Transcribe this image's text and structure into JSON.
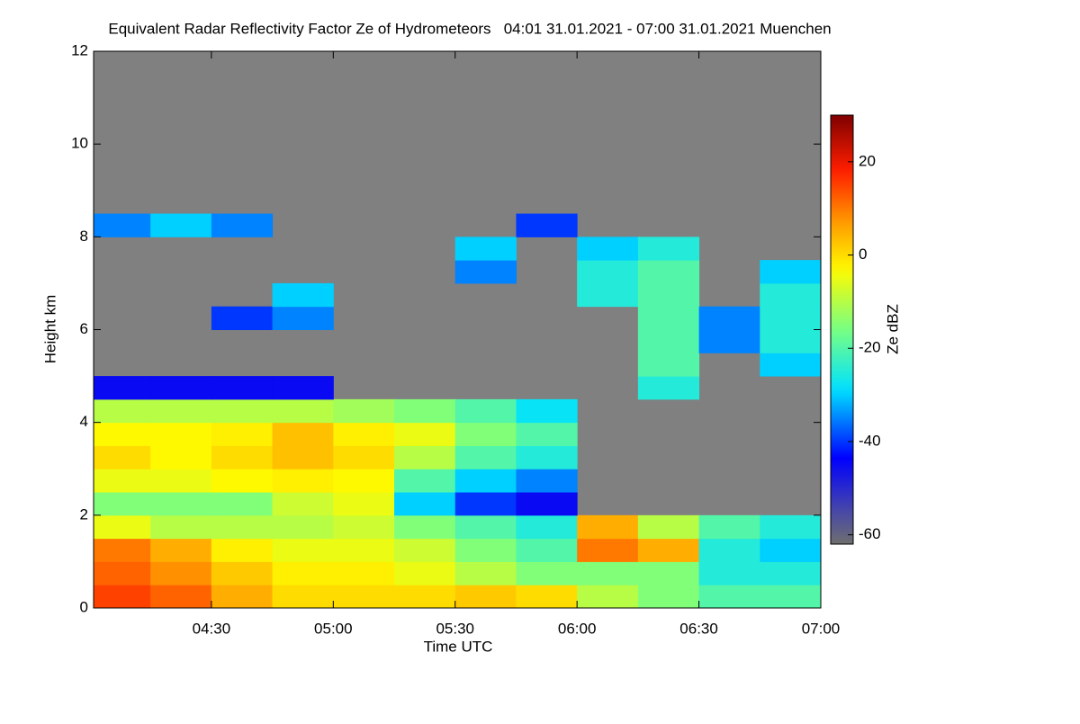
{
  "chart_data": {
    "type": "heatmap",
    "title": "Equivalent Radar Reflectivity Factor Ze of Hydrometeors   04:01 31.01.2021 - 07:00 31.01.2021 Muenchen",
    "x_label": "Time UTC",
    "y_label": "Height km",
    "x": [
      4.0,
      4.25,
      4.5,
      4.75,
      5.0,
      5.25,
      5.5,
      5.75,
      6.0,
      6.25,
      6.5,
      6.75
    ],
    "y": [
      0,
      0.5,
      1,
      1.5,
      2,
      2.5,
      3,
      3.5,
      4,
      4.5,
      5,
      5.5,
      6,
      6.5,
      7,
      7.5,
      8,
      8.5
    ],
    "z": [
      [
        15,
        12,
        5,
        0,
        0,
        0,
        2,
        0,
        -10,
        -15,
        -20,
        -20
      ],
      [
        12,
        8,
        2,
        -2,
        -2,
        -5,
        -10,
        -15,
        -15,
        -15,
        -25,
        -25
      ],
      [
        10,
        5,
        -2,
        -5,
        -5,
        -8,
        -15,
        -20,
        10,
        5,
        -25,
        -30
      ],
      [
        -5,
        -10,
        -10,
        -10,
        -8,
        -15,
        -20,
        -25,
        5,
        -10,
        -20,
        -25
      ],
      [
        -15,
        -15,
        -15,
        -8,
        -5,
        -30,
        -40,
        -45,
        null,
        null,
        null,
        null
      ],
      [
        -5,
        -5,
        -3,
        -2,
        -3,
        -20,
        -30,
        -35,
        null,
        null,
        null,
        null
      ],
      [
        0,
        -3,
        0,
        3,
        0,
        -10,
        -20,
        -25,
        null,
        null,
        null,
        null
      ],
      [
        -3,
        -3,
        -2,
        3,
        -2,
        -5,
        -15,
        -20,
        null,
        null,
        null,
        null
      ],
      [
        -10,
        -10,
        -10,
        -10,
        -12,
        -15,
        -20,
        -28,
        null,
        null,
        null,
        null
      ],
      [
        -45,
        -45,
        -45,
        -45,
        null,
        null,
        null,
        null,
        null,
        -25,
        null,
        null
      ],
      [
        null,
        null,
        null,
        null,
        null,
        null,
        null,
        null,
        null,
        -20,
        null,
        -30
      ],
      [
        null,
        null,
        null,
        null,
        null,
        null,
        null,
        null,
        null,
        -20,
        -35,
        -25
      ],
      [
        null,
        null,
        -40,
        -35,
        null,
        null,
        null,
        null,
        null,
        -20,
        -35,
        -25
      ],
      [
        null,
        null,
        null,
        -30,
        null,
        null,
        null,
        null,
        -25,
        -20,
        null,
        -25
      ],
      [
        null,
        null,
        null,
        null,
        null,
        null,
        -35,
        null,
        -25,
        -20,
        null,
        -30
      ],
      [
        null,
        null,
        null,
        null,
        null,
        null,
        -30,
        null,
        -30,
        -25,
        null,
        null
      ],
      [
        -35,
        -30,
        -35,
        null,
        null,
        null,
        null,
        -40,
        null,
        null,
        null,
        null
      ],
      [
        null,
        null,
        null,
        null,
        null,
        null,
        null,
        null,
        null,
        null,
        null,
        null
      ]
    ],
    "xlim": [
      4.0167,
      7.0
    ],
    "xticks": [
      {
        "value": 4.5,
        "label": "04:30"
      },
      {
        "value": 5.0,
        "label": "05:00"
      },
      {
        "value": 5.5,
        "label": "05:30"
      },
      {
        "value": 6.0,
        "label": "06:00"
      },
      {
        "value": 6.5,
        "label": "06:30"
      },
      {
        "value": 7.0,
        "label": "07:00"
      }
    ],
    "ylim": [
      0,
      12
    ],
    "yticks": [
      0,
      2,
      4,
      6,
      8,
      10,
      12
    ],
    "colorbar": {
      "label": "Ze dBZ",
      "lim": [
        -62,
        30
      ],
      "ticks": [
        20,
        0,
        -20,
        -40,
        -60
      ]
    }
  }
}
